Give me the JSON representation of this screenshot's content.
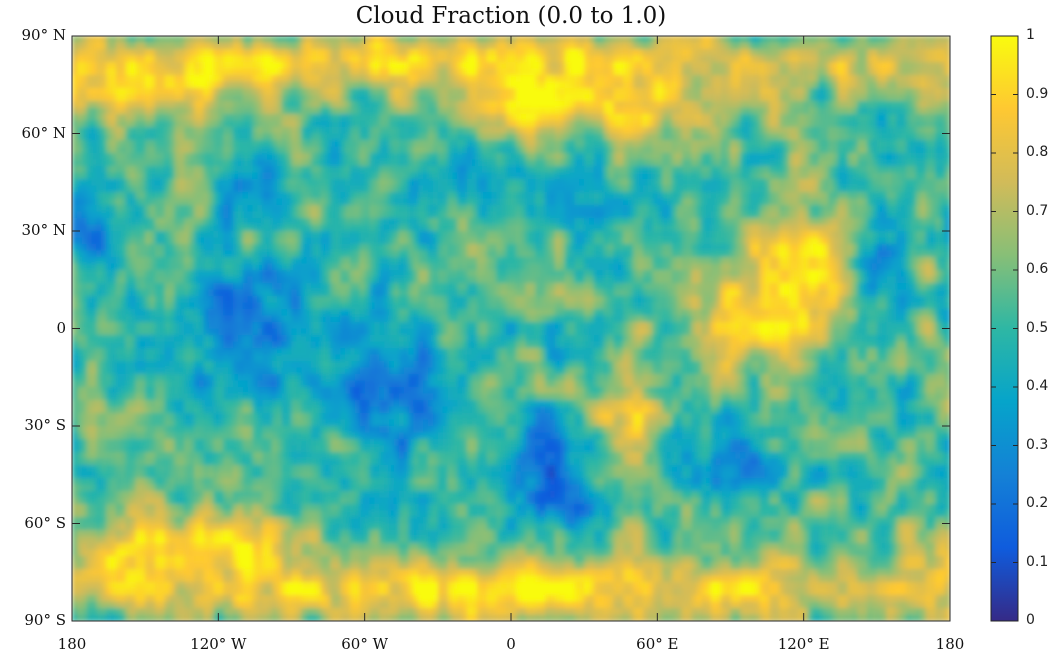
{
  "chart_data": {
    "type": "heatmap",
    "title": "Cloud Fraction (0.0 to 1.0)",
    "projection": "equirectangular",
    "x_range": [
      -180,
      180
    ],
    "y_range": [
      -90,
      90
    ],
    "latitude_ticks": [
      {
        "value": 90,
        "label": "90° N"
      },
      {
        "value": 60,
        "label": "60° N"
      },
      {
        "value": 30,
        "label": "30° N"
      },
      {
        "value": 0,
        "label": "0"
      },
      {
        "value": -30,
        "label": "30° S"
      },
      {
        "value": -60,
        "label": "60° S"
      },
      {
        "value": -90,
        "label": "90° S"
      }
    ],
    "longitude_ticks": [
      {
        "value": -180,
        "label": "180"
      },
      {
        "value": -120,
        "label": "120° W"
      },
      {
        "value": -60,
        "label": "60° W"
      },
      {
        "value": 0,
        "label": "0"
      },
      {
        "value": 60,
        "label": "60° E"
      },
      {
        "value": 120,
        "label": "120° E"
      },
      {
        "value": 180,
        "label": "180"
      }
    ],
    "colorbar": {
      "range": [
        0,
        1
      ],
      "colormap": "parula",
      "ticks": [
        {
          "value": 1,
          "label": "1"
        },
        {
          "value": 0.9,
          "label": "0.9"
        },
        {
          "value": 0.8,
          "label": "0.8"
        },
        {
          "value": 0.7,
          "label": "0.7"
        },
        {
          "value": 0.6,
          "label": "0.6"
        },
        {
          "value": 0.5,
          "label": "0.5"
        },
        {
          "value": 0.4,
          "label": "0.4"
        },
        {
          "value": 0.3,
          "label": "0.3"
        },
        {
          "value": 0.2,
          "label": "0.2"
        },
        {
          "value": 0.1,
          "label": "0.1"
        },
        {
          "value": 0,
          "label": "0"
        }
      ],
      "stops": [
        "#352a87",
        "#0f5cdd",
        "#1481d6",
        "#06a4ca",
        "#2eb7a4",
        "#87bf77",
        "#d1bb59",
        "#fec832",
        "#f9fb0e"
      ]
    },
    "field_regions": [
      {
        "name": "arctic cloud belt",
        "lon": 0,
        "lat": 82,
        "lon_radius": 180,
        "lat_radius": 8,
        "value": 0.95
      },
      {
        "name": "southern ocean cloud belt",
        "lon": 0,
        "lat": -80,
        "lon_radius": 180,
        "lat_radius": 10,
        "value": 0.95
      },
      {
        "name": "north atlantic storm track",
        "lon": 25,
        "lat": 70,
        "lon_radius": 60,
        "lat_radius": 12,
        "value": 0.97
      },
      {
        "name": "north pacific high cloud",
        "lon": -140,
        "lat": 75,
        "lon_radius": 50,
        "lat_radius": 12,
        "value": 0.92
      },
      {
        "name": "east asia pacific cloud mass",
        "lon": 120,
        "lat": 15,
        "lon_radius": 28,
        "lat_radius": 18,
        "value": 0.98
      },
      {
        "name": "indian ocean cloud mass",
        "lon": 95,
        "lat": 5,
        "lon_radius": 20,
        "lat_radius": 18,
        "value": 0.95
      },
      {
        "name": "southern africa cloud mass",
        "lon": 45,
        "lat": -25,
        "lon_radius": 14,
        "lat_radius": 14,
        "value": 0.93
      },
      {
        "name": "south pacific southern belt",
        "lon": -135,
        "lat": -70,
        "lon_radius": 55,
        "lat_radius": 12,
        "value": 0.96
      },
      {
        "name": "central pacific clear region",
        "lon": -105,
        "lat": 0,
        "lon_radius": 30,
        "lat_radius": 25,
        "value": 0.22
      },
      {
        "name": "south atlantic clear region",
        "lon": -50,
        "lat": -20,
        "lon_radius": 25,
        "lat_radius": 25,
        "value": 0.15
      },
      {
        "name": "southern ocean clear region",
        "lon": 15,
        "lat": -45,
        "lon_radius": 22,
        "lat_radius": 20,
        "value": 0.18
      },
      {
        "name": "north pacific clear region",
        "lon": -170,
        "lat": 30,
        "lon_radius": 14,
        "lat_radius": 12,
        "value": 0.25
      },
      {
        "name": "western pacific clear patch",
        "lon": 150,
        "lat": 20,
        "lon_radius": 12,
        "lat_radius": 14,
        "value": 0.22
      },
      {
        "name": "southern indian ocean clear region",
        "lon": 95,
        "lat": -40,
        "lon_radius": 24,
        "lat_radius": 15,
        "value": 0.32
      },
      {
        "name": "north america clear patch",
        "lon": -105,
        "lat": 45,
        "lon_radius": 15,
        "lat_radius": 10,
        "value": 0.28
      },
      {
        "name": "central atlantic clear patch",
        "lon": -25,
        "lat": 45,
        "lon_radius": 15,
        "lat_radius": 12,
        "value": 0.3
      },
      {
        "name": "central asia clear region",
        "lon": 45,
        "lat": 35,
        "lon_radius": 30,
        "lat_radius": 15,
        "value": 0.45
      }
    ]
  }
}
